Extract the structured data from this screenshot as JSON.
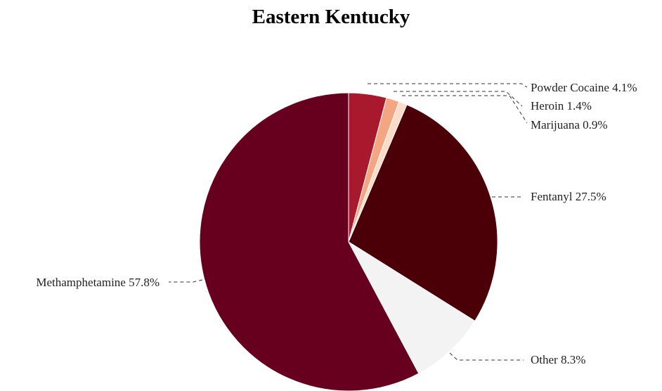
{
  "chart_data": {
    "type": "pie",
    "title": "Eastern Kentucky",
    "slices": [
      {
        "label": "Powder Cocaine 4.1%",
        "name": "Powder Cocaine",
        "value": 4.1,
        "color": "#a8192e"
      },
      {
        "label": "Heroin 1.4%",
        "name": "Heroin",
        "value": 1.4,
        "color": "#f4a582"
      },
      {
        "label": "Marijuana 0.9%",
        "name": "Marijuana",
        "value": 0.9,
        "color": "#fddbc7"
      },
      {
        "label": "Fentanyl 27.5%",
        "name": "Fentanyl",
        "value": 27.5,
        "color": "#4a0006"
      },
      {
        "label": "Other 8.3%",
        "name": "Other",
        "value": 8.3,
        "color": "#f3f3f3"
      },
      {
        "label": "Methamphetamine 57.8%",
        "name": "Methamphetamine",
        "value": 57.8,
        "color": "#67001f"
      }
    ],
    "start_angle": "12 o'clock",
    "direction": "clockwise",
    "legend": "none"
  }
}
